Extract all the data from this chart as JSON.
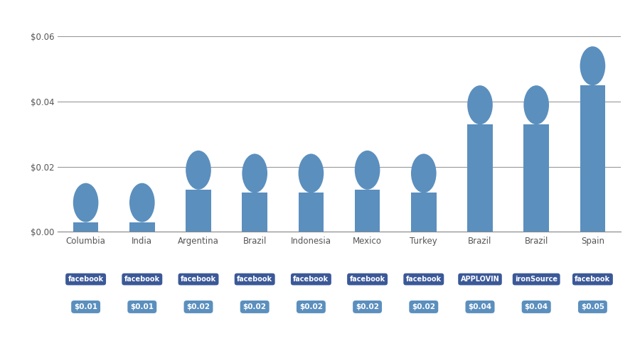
{
  "categories": [
    "Columbia",
    "India",
    "Argentina",
    "Brazil",
    "Indonesia",
    "Mexico",
    "Turkey",
    "Brazil",
    "Brazil",
    "Spain"
  ],
  "values": [
    0.009,
    0.009,
    0.019,
    0.018,
    0.018,
    0.019,
    0.018,
    0.039,
    0.039,
    0.051
  ],
  "bar_color": "#5b8fbe",
  "background_color": "#ffffff",
  "ylim": [
    0,
    0.066
  ],
  "yticks": [
    0.0,
    0.02,
    0.04,
    0.06
  ],
  "ytick_labels": [
    "$0.00",
    "$0.02",
    "$0.04",
    "$0.06"
  ],
  "network_labels": [
    "facebook",
    "facebook",
    "facebook",
    "facebook",
    "facebook",
    "facebook",
    "facebook",
    "APPLOVIN",
    "ironSource",
    "facebook"
  ],
  "value_labels": [
    "$0.01",
    "$0.01",
    "$0.02",
    "$0.02",
    "$0.02",
    "$0.02",
    "$0.02",
    "$0.04",
    "$0.04",
    "$0.05"
  ],
  "network_bg_color": "#3b5998",
  "network_text_color": "#ffffff",
  "value_bg_color": "#5b8fbe",
  "value_text_color": "#ffffff",
  "grid_color": "#999999",
  "axis_color": "#888888",
  "tick_color": "#555555",
  "bar_width": 0.45,
  "cap_ratio": 0.006,
  "label_fontsize": 8.5,
  "network_fontsize": 7,
  "value_fontsize": 7.5
}
